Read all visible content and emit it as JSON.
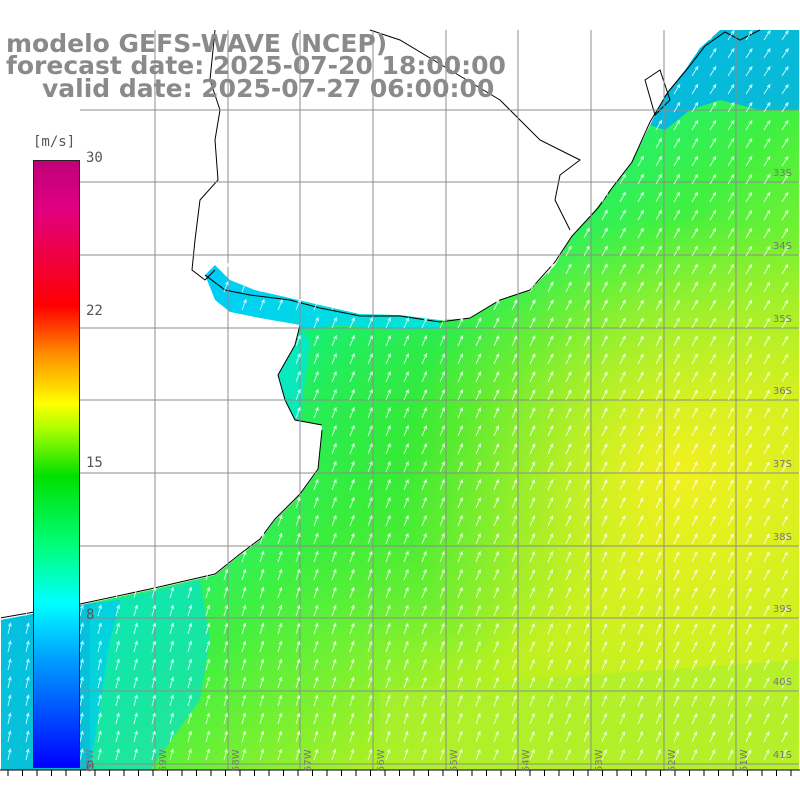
{
  "title": {
    "line1": "modelo GEFS-WAVE (NCEP)",
    "line2": "forecast date: 2025-07-20 18:00:00",
    "line3": "valid date: 2025-07-27 06:00:00"
  },
  "colorbar": {
    "unit": "[m/s]",
    "ticks": [
      "30",
      "22",
      "15",
      "8",
      "0"
    ],
    "colors": [
      "#0000ff",
      "#00a0ff",
      "#00ffff",
      "#00ff80",
      "#00e000",
      "#b0ff00",
      "#ffff00",
      "#ff9000",
      "#ff0000",
      "#c0007a"
    ]
  },
  "lat_labels": [
    "33S",
    "34S",
    "35S",
    "36S",
    "37S",
    "38S",
    "39S",
    "40S",
    "41S"
  ],
  "lon_labels": [
    "60W",
    "59W",
    "58W",
    "57W",
    "56W",
    "55W",
    "54W",
    "53W",
    "52W",
    "51W"
  ],
  "wind": {
    "direction": "from south-southwest, arrows pointing north-northeast",
    "max_region": "east of 55W around 37S-38S, about 15 m/s",
    "coastal_values": "about 8-9 m/s"
  },
  "colors": {
    "land": "#ffffff",
    "coastline": "#000000",
    "grid": "#8c8c8c",
    "arrows": "#ffffff",
    "text": "#8a8a8a"
  }
}
